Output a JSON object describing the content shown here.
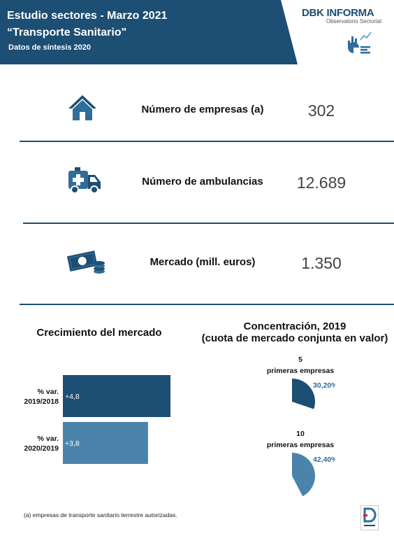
{
  "header": {
    "title": "Estudio sectores - Marzo 2021",
    "subtitle": "“Transporte Sanitario\"",
    "note": "Datos de síntesis 2020",
    "brand_name": "DBK INFORMA",
    "brand_tagline": "Observatorio Sectorial",
    "colors": {
      "header_bg": "#1d4e73",
      "accent": "#2f6e98",
      "brand_red": "#d2262f"
    }
  },
  "kpis": [
    {
      "icon": "house-icon",
      "label": "Número de empresas (a)",
      "value": "302"
    },
    {
      "icon": "ambulance-icon",
      "label": "Número de ambulancias",
      "value": "12.689"
    },
    {
      "icon": "money-icon",
      "label": "Mercado (mill. euros)",
      "value": "1.350"
    }
  ],
  "growth": {
    "title": "Crecimiento del mercado",
    "chart_data": {
      "type": "bar",
      "orientation": "horizontal",
      "categories": [
        "% var. 2019/2018",
        "% var. 2020/2019"
      ],
      "category_lines": [
        [
          "% var.",
          "2019/2018"
        ],
        [
          "% var.",
          "2020/2019"
        ]
      ],
      "values": [
        4.8,
        3.8
      ],
      "value_labels": [
        "+4,8",
        "+3,8"
      ],
      "colors": [
        "#1d4e73",
        "#4b84ab"
      ]
    }
  },
  "concentration": {
    "title_line1": "Concentración, 2019",
    "title_line2": "(cuota de mercado conjunta en valor)",
    "chart_data": [
      {
        "type": "pie",
        "caption_line1": "5",
        "caption_line2": "primeras empresas",
        "value": 30.2,
        "label": "30,20%",
        "color": "#1d4e73"
      },
      {
        "type": "pie",
        "caption_line1": "10",
        "caption_line2": "primeras empresas",
        "value": 42.4,
        "label": "42,40%",
        "color": "#4b84ab"
      }
    ]
  },
  "footnote": "(a) empresas de transporte sanitario terrestre autorizadas."
}
